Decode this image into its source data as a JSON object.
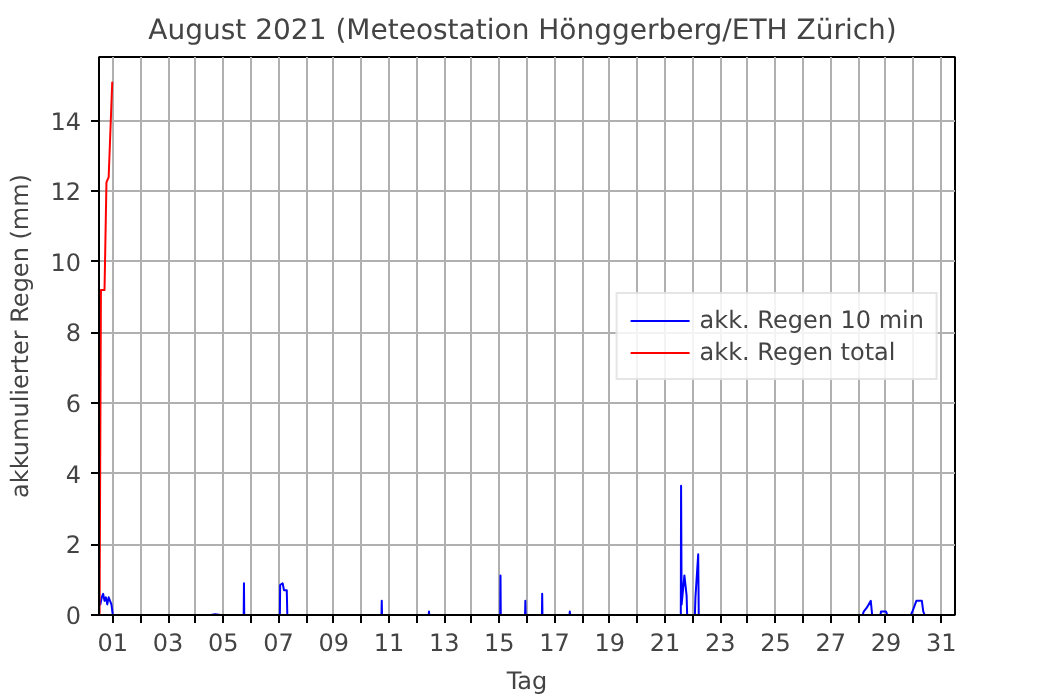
{
  "chart_data": {
    "type": "line",
    "title": "August 2021  (Meteostation Hönggerberg/ETH Zürich)",
    "xlabel": "Tag",
    "ylabel": "akkumulierter Regen (mm)",
    "xlim": [
      0.5,
      31.5
    ],
    "ylim": [
      0,
      15.8
    ],
    "xticks": [
      {
        "value": 1,
        "label": "01"
      },
      {
        "value": 2,
        "label": null
      },
      {
        "value": 3,
        "label": "03"
      },
      {
        "value": 4,
        "label": null
      },
      {
        "value": 5,
        "label": "05"
      },
      {
        "value": 6,
        "label": null
      },
      {
        "value": 7,
        "label": "07"
      },
      {
        "value": 8,
        "label": null
      },
      {
        "value": 9,
        "label": "09"
      },
      {
        "value": 10,
        "label": null
      },
      {
        "value": 11,
        "label": "11"
      },
      {
        "value": 12,
        "label": null
      },
      {
        "value": 13,
        "label": "13"
      },
      {
        "value": 14,
        "label": null
      },
      {
        "value": 15,
        "label": "15"
      },
      {
        "value": 16,
        "label": null
      },
      {
        "value": 17,
        "label": "17"
      },
      {
        "value": 18,
        "label": null
      },
      {
        "value": 19,
        "label": "19"
      },
      {
        "value": 20,
        "label": null
      },
      {
        "value": 21,
        "label": "21"
      },
      {
        "value": 22,
        "label": null
      },
      {
        "value": 23,
        "label": "23"
      },
      {
        "value": 24,
        "label": null
      },
      {
        "value": 25,
        "label": "25"
      },
      {
        "value": 26,
        "label": null
      },
      {
        "value": 27,
        "label": "27"
      },
      {
        "value": 28,
        "label": null
      },
      {
        "value": 29,
        "label": "29"
      },
      {
        "value": 30,
        "label": null
      },
      {
        "value": 31,
        "label": "31"
      }
    ],
    "yticks": [
      0,
      2,
      4,
      6,
      8,
      10,
      12,
      14
    ],
    "grid": true,
    "legend": "right",
    "line_style": "solid",
    "series": [
      {
        "name": "akk. Regen 10 min",
        "color": "#0000ff",
        "x": [
          0.52,
          0.55,
          0.6,
          0.65,
          0.7,
          0.75,
          0.8,
          0.85,
          0.9,
          0.95,
          1.0,
          4.55,
          4.7,
          4.9,
          5.74,
          5.75,
          5.76,
          7.05,
          7.06,
          7.15,
          7.2,
          7.3,
          7.32,
          10.73,
          10.74,
          10.75,
          12.44,
          12.45,
          12.46,
          15.03,
          15.04,
          15.05,
          15.93,
          15.94,
          15.95,
          16.54,
          16.55,
          16.56,
          17.54,
          17.55,
          17.56,
          21.57,
          21.58,
          21.6,
          21.7,
          21.78,
          21.8,
          22.08,
          22.1,
          22.2,
          22.22,
          28.15,
          28.2,
          28.3,
          28.45,
          28.5,
          28.8,
          28.82,
          29.0,
          29.05,
          29.9,
          29.96,
          30.1,
          30.3,
          30.35,
          30.4,
          31.5
        ],
        "values": [
          0.4,
          0.3,
          0.5,
          0.6,
          0.4,
          0.5,
          0.3,
          0.5,
          0.4,
          0.3,
          0,
          0,
          0.02,
          0,
          0,
          0.9,
          0,
          0,
          0.85,
          0.9,
          0.7,
          0.7,
          0,
          0,
          0.4,
          0,
          0,
          0.1,
          0,
          0,
          1.12,
          0,
          0,
          0.4,
          0,
          0,
          0.6,
          0,
          0,
          0.1,
          0,
          0,
          3.66,
          0.3,
          1.12,
          0.55,
          0,
          0,
          0.5,
          1.72,
          0,
          0,
          0.1,
          0.2,
          0.4,
          0,
          0,
          0.1,
          0.1,
          0,
          0,
          0.1,
          0.4,
          0.4,
          0.1,
          0,
          0
        ]
      },
      {
        "name": "akk. Regen total",
        "color": "#ff0000",
        "x": [
          0.52,
          0.57,
          0.7,
          0.77,
          0.85,
          0.98
        ],
        "values": [
          0,
          9.2,
          9.2,
          12.25,
          12.4,
          15.1
        ]
      }
    ]
  }
}
